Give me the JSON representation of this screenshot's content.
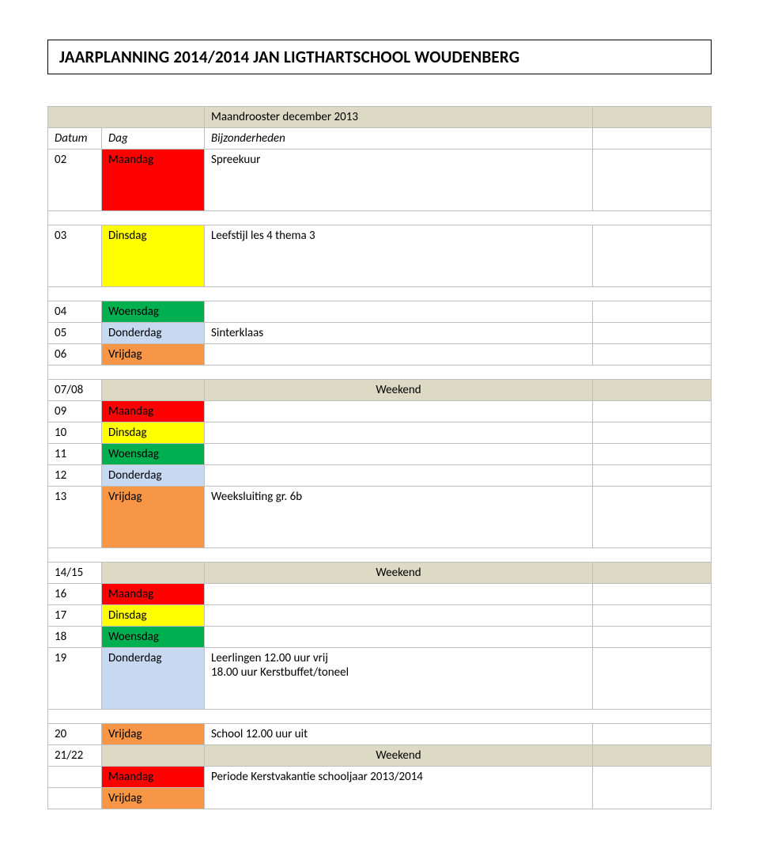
{
  "title": "JAARPLANNING 2014/2014 JAN LIGTHARTSCHOOL WOUDENBERG",
  "headers": {
    "datum": "Datum",
    "dag": "Dag",
    "sub": "Maandrooster december 2013",
    "bijz": "Bijzonderheden"
  },
  "rows": {
    "r02": {
      "date": "02",
      "day": "Maandag",
      "note": "Spreekuur"
    },
    "r03": {
      "date": "03",
      "day": "Dinsdag",
      "note": "Leefstijl les 4 thema 3"
    },
    "r04": {
      "date": "04",
      "day": "Woensdag",
      "note": ""
    },
    "r05": {
      "date": "05",
      "day": "Donderdag",
      "note": "Sinterklaas"
    },
    "r06": {
      "date": "06",
      "day": "Vrijdag",
      "note": ""
    },
    "w0708": {
      "date": "07/08",
      "note": "Weekend"
    },
    "r09": {
      "date": "09",
      "day": "Maandag",
      "note": ""
    },
    "r10": {
      "date": "10",
      "day": "Dinsdag",
      "note": ""
    },
    "r11": {
      "date": "11",
      "day": "Woensdag",
      "note": ""
    },
    "r12": {
      "date": "12",
      "day": "Donderdag",
      "note": ""
    },
    "r13": {
      "date": "13",
      "day": "Vrijdag",
      "note": "Weeksluiting gr. 6b"
    },
    "w1415": {
      "date": "14/15",
      "note": "Weekend"
    },
    "r16": {
      "date": "16",
      "day": "Maandag",
      "note": ""
    },
    "r17": {
      "date": "17",
      "day": "Dinsdag",
      "note": ""
    },
    "r18": {
      "date": "18",
      "day": "Woensdag",
      "note": ""
    },
    "r19": {
      "date": "19",
      "day": "Donderdag",
      "note": "Leerlingen 12.00 uur vrij\n18.00 uur Kerstbuffet/toneel"
    },
    "r20": {
      "date": "20",
      "day": "Vrijdag",
      "note": "School 12.00 uur uit"
    },
    "w2122": {
      "date": "21/22",
      "note": "Weekend"
    },
    "rMa": {
      "day": "Maandag"
    },
    "rVr": {
      "day": "Vrijdag"
    },
    "period": "Periode Kerstvakantie schooljaar 2013/2014"
  }
}
